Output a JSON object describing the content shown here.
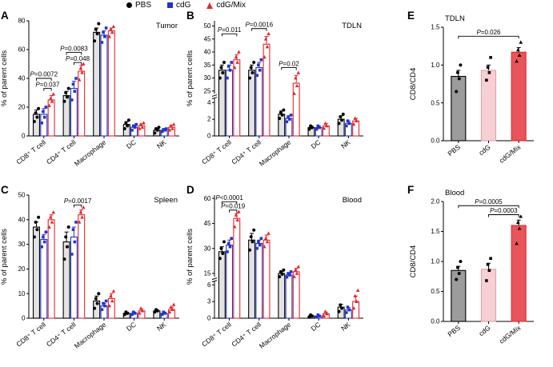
{
  "legend": {
    "items": [
      {
        "label": "PBS",
        "marker": "circle",
        "color": "#000000"
      },
      {
        "label": "cdG",
        "marker": "square",
        "color": "#2233cc"
      },
      {
        "label": "cdG/Mix",
        "marker": "triangle",
        "color": "#e4282e"
      }
    ]
  },
  "chart_data": [
    {
      "letter": "A",
      "type": "bar",
      "title": "Tumor",
      "title_pos": "top-right",
      "ylabel": "% of parent cells",
      "categories": [
        "CD8⁺ T cell",
        "CD4⁺ T cell",
        "Macrophage",
        "DC",
        "NK"
      ],
      "segments": [
        {
          "min": 0,
          "max": 80,
          "frac": 1,
          "ticks": [
            [
              0,
              "0"
            ],
            [
              20,
              "20"
            ],
            [
              40,
              "40"
            ],
            [
              60,
              "60"
            ],
            [
              80,
              "80"
            ]
          ]
        }
      ],
      "series": [
        {
          "name": "PBS",
          "color": "#000000",
          "fill": "#e3e3e3",
          "marker": "circle",
          "values": [
            15,
            28,
            72,
            8,
            4
          ],
          "errors": [
            3,
            3,
            3,
            2,
            1
          ],
          "points": [
            [
              10,
              13,
              16,
              19
            ],
            [
              24,
              27,
              30,
              33
            ],
            [
              66,
              71,
              74,
              78
            ],
            [
              5,
              7,
              9,
              11
            ],
            [
              2,
              4,
              5,
              6
            ]
          ]
        },
        {
          "name": "cdG",
          "color": "#2233cc",
          "fill": "#ffffff",
          "marker": "square",
          "values": [
            15,
            33,
            70,
            6,
            4
          ],
          "errors": [
            4,
            5,
            3,
            1,
            1
          ],
          "points": [
            [
              9,
              13,
              17,
              20
            ],
            [
              25,
              31,
              36,
              40
            ],
            [
              65,
              69,
              72,
              75
            ],
            [
              4,
              6,
              7,
              8
            ],
            [
              3,
              4,
              4.5,
              5
            ]
          ]
        },
        {
          "name": "cdG/Mix",
          "color": "#e4282e",
          "fill": "#ffffff",
          "marker": "triangle",
          "values": [
            25,
            45,
            73,
            7,
            6
          ],
          "errors": [
            3,
            4,
            2,
            1.5,
            1.5
          ],
          "points": [
            [
              21,
              24,
              26,
              29
            ],
            [
              39,
              44,
              47,
              50
            ],
            [
              69,
              72,
              74,
              76
            ],
            [
              5,
              6,
              8,
              9
            ],
            [
              4,
              5,
              7,
              8
            ]
          ]
        }
      ],
      "brackets": [
        {
          "c1": 0,
          "s1": 0,
          "c2": 0,
          "s2": 2,
          "y": 40,
          "label": "P=0.0072"
        },
        {
          "c1": 0,
          "s1": 1,
          "c2": 0,
          "s2": 2,
          "y": 33,
          "label": "P=0.037"
        },
        {
          "c1": 1,
          "s1": 0,
          "c2": 1,
          "s2": 2,
          "y": 58,
          "label": "P=0.0083"
        },
        {
          "c1": 1,
          "s1": 1,
          "c2": 1,
          "s2": 2,
          "y": 51,
          "label": "P=0.048"
        }
      ]
    },
    {
      "letter": "B",
      "type": "bar",
      "title": "TDLN",
      "title_pos": "top-right",
      "ylabel": "% of parent cells",
      "categories": [
        "CD8⁺ T cell",
        "CD4⁺ T cell",
        "Macrophage",
        "DC",
        "NK"
      ],
      "segments": [
        {
          "min": 0,
          "max": 4.5,
          "frac": 0.34,
          "ticks": [
            [
              0,
              "0"
            ],
            [
              2,
              "2"
            ],
            [
              4,
              "4"
            ]
          ]
        },
        {
          "min": 24,
          "max": 52,
          "frac": 0.66,
          "ticks": [
            [
              25,
              "25"
            ],
            [
              30,
              "30"
            ],
            [
              35,
              "35"
            ],
            [
              40,
              "40"
            ],
            [
              45,
              "45"
            ],
            [
              50,
              "50"
            ]
          ]
        }
      ],
      "series": [
        {
          "name": "PBS",
          "color": "#000000",
          "fill": "#e3e3e3",
          "marker": "circle",
          "values": [
            33,
            33,
            2.6,
            1.0,
            2.0
          ],
          "errors": [
            2,
            2,
            0.4,
            0.2,
            0.4
          ],
          "points": [
            [
              30,
              32,
              34,
              36
            ],
            [
              30,
              32,
              34,
              36
            ],
            [
              2.1,
              2.5,
              2.8,
              3.1
            ],
            [
              0.8,
              1.0,
              1.2
            ],
            [
              1.5,
              1.9,
              2.3,
              2.6
            ]
          ]
        },
        {
          "name": "cdG",
          "color": "#2233cc",
          "fill": "#ffffff",
          "marker": "square",
          "values": [
            33,
            34,
            2.1,
            1.0,
            1.5
          ],
          "errors": [
            2,
            2,
            0.3,
            0.2,
            0.3
          ],
          "points": [
            [
              30,
              33,
              34.5,
              36
            ],
            [
              31,
              33,
              35,
              37
            ],
            [
              1.7,
              2.0,
              2.3,
              2.5
            ],
            [
              0.8,
              1.0,
              1.2
            ],
            [
              1.2,
              1.5,
              1.8
            ]
          ]
        },
        {
          "name": "cdG/Mix",
          "color": "#e4282e",
          "fill": "#ffffff",
          "marker": "triangle",
          "values": [
            37,
            43,
            28,
            1.2,
            1.8
          ],
          "errors": [
            2,
            3,
            3,
            0.3,
            0.3
          ],
          "points": [
            [
              34,
              36,
              38,
              40
            ],
            [
              38,
              42,
              45,
              47
            ],
            [
              24,
              27,
              30,
              32
            ],
            [
              0.9,
              1.2,
              1.5
            ],
            [
              1.4,
              1.8,
              2.1
            ]
          ]
        }
      ],
      "brackets": [
        {
          "c1": 0,
          "s1": 0,
          "c2": 0,
          "s2": 2,
          "y": 47,
          "label": "P=0.011"
        },
        {
          "c1": 1,
          "s1": 0,
          "c2": 1,
          "s2": 2,
          "y": 49,
          "label": "P=0.0016"
        },
        {
          "c1": 2,
          "s1": 0,
          "c2": 2,
          "s2": 2,
          "y": 34,
          "label": "P=0.02"
        }
      ]
    },
    {
      "letter": "C",
      "type": "bar",
      "title": "Spleen",
      "title_pos": "top-right",
      "ylabel": "% of parent cells",
      "categories": [
        "CD8⁺ T cell",
        "CD4⁺ T cell",
        "Macrophage",
        "DC",
        "NK"
      ],
      "segments": [
        {
          "min": 0,
          "max": 50,
          "frac": 1,
          "ticks": [
            [
              0,
              "0"
            ],
            [
              10,
              "10"
            ],
            [
              20,
              "20"
            ],
            [
              30,
              "30"
            ],
            [
              40,
              "40"
            ],
            [
              50,
              "50"
            ]
          ]
        }
      ],
      "series": [
        {
          "name": "PBS",
          "color": "#000000",
          "fill": "#e3e3e3",
          "marker": "circle",
          "values": [
            37,
            31,
            7,
            2,
            3
          ],
          "errors": [
            2,
            4,
            2,
            0.5,
            0.5
          ],
          "points": [
            [
              33,
              36,
              39,
              41
            ],
            [
              24,
              29,
              33,
              37
            ],
            [
              4,
              6,
              8,
              10
            ],
            [
              1.5,
              2,
              2.5
            ],
            [
              2.5,
              3,
              3.5
            ]
          ]
        },
        {
          "name": "cdG",
          "color": "#2233cc",
          "fill": "#ffffff",
          "marker": "square",
          "values": [
            32,
            33,
            5,
            2,
            2
          ],
          "errors": [
            2,
            4,
            1,
            0.5,
            0.5
          ],
          "points": [
            [
              29,
              31,
              33,
              35
            ],
            [
              26,
              31,
              36,
              39
            ],
            [
              3.5,
              5,
              6,
              7
            ],
            [
              1.5,
              2,
              2.5
            ],
            [
              1.5,
              2,
              2.5
            ]
          ]
        },
        {
          "name": "cdG/Mix",
          "color": "#e4282e",
          "fill": "#ffffff",
          "marker": "triangle",
          "values": [
            40,
            42,
            8,
            3,
            3.5
          ],
          "errors": [
            2,
            2,
            2,
            0.8,
            1
          ],
          "points": [
            [
              37,
              39,
              41,
              43
            ],
            [
              39,
              41,
              43,
              45
            ],
            [
              5,
              7,
              9,
              11
            ],
            [
              2,
              3,
              4
            ],
            [
              2.5,
              3.5,
              4.5,
              5.5
            ]
          ]
        }
      ],
      "brackets": [
        {
          "c1": 1,
          "s1": 1,
          "c2": 1,
          "s2": 2,
          "y": 46,
          "label": "P=0.0017"
        }
      ]
    },
    {
      "letter": "D",
      "type": "bar",
      "title": "Blood",
      "title_pos": "top-right",
      "ylabel": "% of parent cells",
      "categories": [
        "CD8⁺ T cell",
        "CD4⁺ T cell",
        "Macrophage",
        "DC",
        "NK"
      ],
      "segments": [
        {
          "min": 0,
          "max": 6.6,
          "frac": 0.31,
          "ticks": [
            [
              0,
              "0"
            ],
            [
              3,
              "3"
            ],
            [
              6,
              "6"
            ]
          ]
        },
        {
          "min": 13,
          "max": 62,
          "frac": 0.69,
          "ticks": [
            [
              15,
              "15"
            ],
            [
              30,
              "30"
            ],
            [
              45,
              "45"
            ],
            [
              60,
              "60"
            ]
          ]
        }
      ],
      "series": [
        {
          "name": "PBS",
          "color": "#000000",
          "fill": "#e3e3e3",
          "marker": "circle",
          "values": [
            28,
            35,
            15,
            0.4,
            2
          ],
          "errors": [
            3,
            4,
            1,
            0.15,
            0.5
          ],
          "points": [
            [
              24,
              27,
              30,
              34
            ],
            [
              29,
              34,
              37,
              41
            ],
            [
              13,
              14.5,
              16,
              17
            ],
            [
              0.2,
              0.4,
              0.6
            ],
            [
              1.2,
              1.8,
              2.4
            ]
          ]
        },
        {
          "name": "cdG",
          "color": "#2233cc",
          "fill": "#ffffff",
          "marker": "square",
          "values": [
            32,
            33,
            14,
            0.4,
            1.5
          ],
          "errors": [
            3,
            2,
            1,
            0.15,
            0.4
          ],
          "points": [
            [
              28,
              31,
              33,
              36
            ],
            [
              30,
              32,
              34,
              36
            ],
            [
              12.5,
              14,
              15,
              16
            ],
            [
              0.2,
              0.4,
              0.6
            ],
            [
              1.0,
              1.5,
              2.0
            ]
          ]
        },
        {
          "name": "cdG/Mix",
          "color": "#e4282e",
          "fill": "#ffffff",
          "marker": "triangle",
          "values": [
            48,
            35,
            16,
            0.8,
            3
          ],
          "errors": [
            3,
            3,
            2,
            0.3,
            1
          ],
          "points": [
            [
              43,
              47,
              50,
              52
            ],
            [
              31,
              34,
              36,
              39
            ],
            [
              13,
              15,
              17,
              19
            ],
            [
              0.4,
              0.8,
              1.2
            ],
            [
              1.8,
              3,
              4,
              5
            ]
          ]
        }
      ],
      "brackets": [
        {
          "c1": 0,
          "s1": 0,
          "c2": 0,
          "s2": 2,
          "y": 58,
          "label": "P<0.0001"
        },
        {
          "c1": 0,
          "s1": 1,
          "c2": 0,
          "s2": 2,
          "y": 53,
          "label": "P=0.019"
        }
      ]
    },
    {
      "letter": "E",
      "type": "bar",
      "title": "TDLN",
      "title_pos": "top-left",
      "ylabel": "CD8/CD4",
      "categories": [
        "PBS",
        "cdG",
        "cdG/Mix"
      ],
      "segments": [
        {
          "min": 0,
          "max": 1.5,
          "frac": 1,
          "ticks": [
            [
              0,
              "0.0"
            ],
            [
              0.5,
              "0.5"
            ],
            [
              1,
              "1.0"
            ],
            [
              1.5,
              "1.5"
            ]
          ]
        }
      ],
      "series": [
        {
          "name": "CD8/CD4",
          "color": "#000000",
          "errcolor": "#000000",
          "fills": [
            "#9c9c9c",
            "#f6d0d2",
            "#e8555a"
          ],
          "strokes": [
            "#000000",
            "#dfa2a8",
            "#e4282e"
          ],
          "markers": [
            "circle",
            "square",
            "triangle"
          ],
          "values": [
            0.85,
            0.93,
            1.17
          ],
          "errors": [
            0.08,
            0.07,
            0.06
          ],
          "points": [
            [
              0.65,
              0.82,
              0.9,
              1.0
            ],
            [
              0.8,
              0.9,
              0.97,
              1.1
            ],
            [
              1.05,
              1.13,
              1.2,
              1.3
            ]
          ]
        }
      ],
      "brackets": [
        {
          "c1": 0,
          "c2": 2,
          "y": 1.38,
          "label": "P=0.026"
        }
      ]
    },
    {
      "letter": "F",
      "type": "bar",
      "title": "Blood",
      "title_pos": "top-left",
      "ylabel": "CD8/CD4",
      "categories": [
        "PBS",
        "cdG",
        "cdG/Mix"
      ],
      "segments": [
        {
          "min": 0,
          "max": 2.0,
          "frac": 1,
          "ticks": [
            [
              0,
              "0.0"
            ],
            [
              0.5,
              "0.5"
            ],
            [
              1,
              "1.0"
            ],
            [
              1.5,
              "1.5"
            ],
            [
              2,
              "2.0"
            ]
          ]
        }
      ],
      "series": [
        {
          "name": "CD8/CD4",
          "color": "#000000",
          "errcolor": "#000000",
          "fills": [
            "#9c9c9c",
            "#f6d0d2",
            "#e8555a"
          ],
          "strokes": [
            "#000000",
            "#dfa2a8",
            "#e4282e"
          ],
          "markers": [
            "circle",
            "square",
            "triangle"
          ],
          "values": [
            0.85,
            0.87,
            1.6
          ],
          "errors": [
            0.07,
            0.1,
            0.09
          ],
          "points": [
            [
              0.7,
              0.8,
              0.9,
              1.0
            ],
            [
              0.68,
              0.85,
              0.95,
              1.05
            ],
            [
              1.3,
              1.55,
              1.65,
              1.75
            ]
          ]
        }
      ],
      "brackets": [
        {
          "c1": 0,
          "c2": 2,
          "y": 1.93,
          "label": "P=0.0005"
        },
        {
          "c1": 1,
          "c2": 2,
          "y": 1.78,
          "label": "P=0.0003"
        }
      ]
    }
  ]
}
